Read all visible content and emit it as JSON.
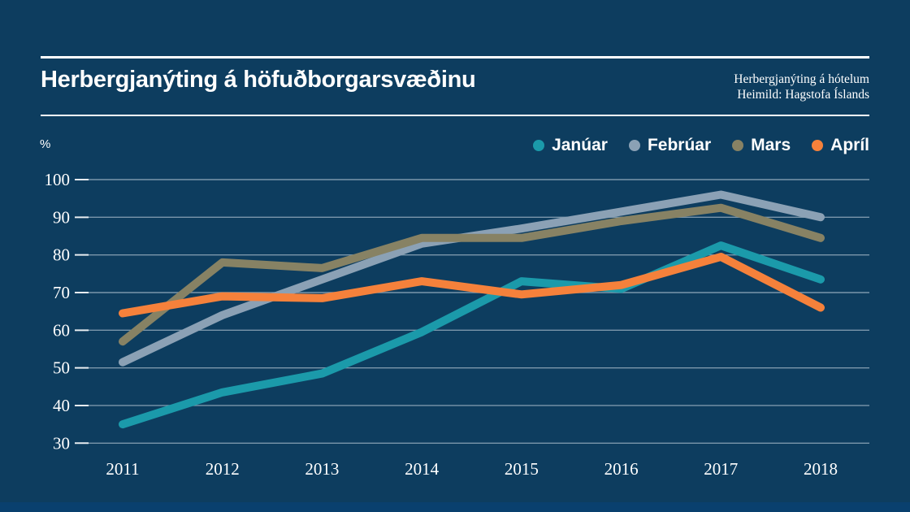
{
  "header": {
    "title": "Herbergjanýting á höfuðborgarsvæðinu",
    "source_line1": "Herbergjanýting á hótelum",
    "source_line2": "Heimild: Hagstofa Íslands"
  },
  "colors": {
    "background": "#0d3d5f",
    "bottom_bar": "#09406e",
    "text": "#ffffff",
    "grid": "rgba(233,242,247,0.5)",
    "tick": "rgba(255,255,255,0.85)"
  },
  "chart_data": {
    "type": "line",
    "title": "Herbergjanýting á höfuðborgarsvæðinu",
    "subtitle": "Herbergjanýting á hótelum",
    "source": "Heimild: Hagstofa Íslands",
    "ylabel": "%",
    "categories": [
      "2011",
      "2012",
      "2013",
      "2014",
      "2015",
      "2016",
      "2017",
      "2018"
    ],
    "yticks": [
      100,
      90,
      80,
      70,
      60,
      50,
      40,
      30
    ],
    "ylim": [
      30,
      100
    ],
    "grid": true,
    "legend_position": "top-right",
    "series": [
      {
        "name": "Janúar",
        "color": "#1b9aaa",
        "values": [
          35,
          43.5,
          48.5,
          59.5,
          73,
          71,
          82.5,
          73.5
        ]
      },
      {
        "name": "Febrúar",
        "color": "#8ba1b5",
        "values": [
          51.5,
          64,
          73.5,
          83,
          87,
          91.5,
          96,
          90
        ]
      },
      {
        "name": "Mars",
        "color": "#878264",
        "values": [
          57,
          78,
          76.5,
          84.5,
          84.5,
          89,
          92.5,
          84.5
        ]
      },
      {
        "name": "Apríl",
        "color": "#f5813b",
        "values": [
          64.5,
          69,
          68.5,
          73,
          69.5,
          72,
          79.5,
          66
        ]
      }
    ],
    "draw_order": [
      1,
      2,
      0,
      3
    ]
  }
}
